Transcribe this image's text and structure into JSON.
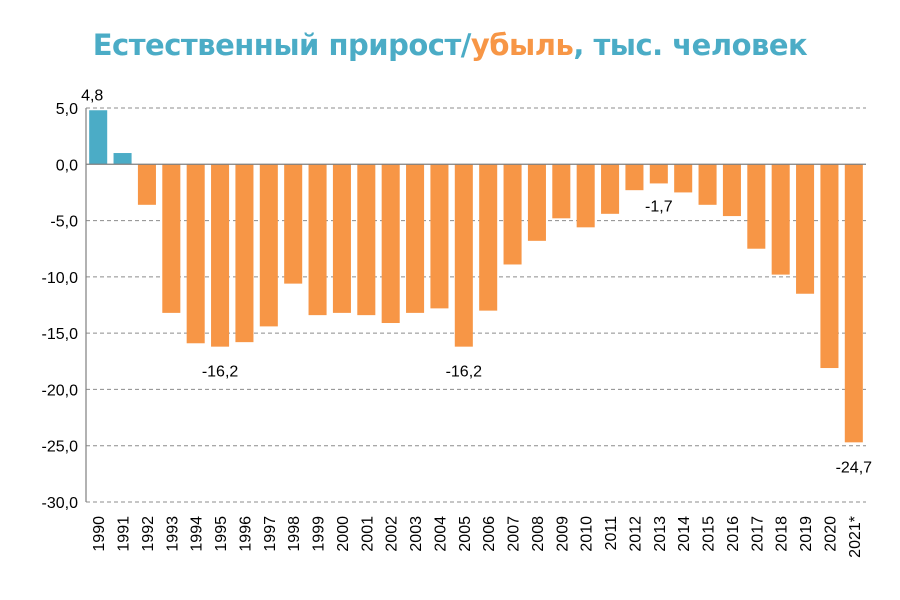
{
  "title": {
    "part1": "Естественный прирост/",
    "part2": "убыль",
    "part3": ", тыс. человек",
    "color_gain": "#4bacc6",
    "color_loss": "#f79646"
  },
  "chart_data": {
    "type": "bar",
    "categories": [
      "1990",
      "1991",
      "1992",
      "1993",
      "1994",
      "1995",
      "1996",
      "1997",
      "1998",
      "1999",
      "2000",
      "2001",
      "2002",
      "2003",
      "2004",
      "2005",
      "2006",
      "2007",
      "2008",
      "2009",
      "2010",
      "2011",
      "2012",
      "2013",
      "2014",
      "2015",
      "2016",
      "2017",
      "2018",
      "2019",
      "2020",
      "2021*"
    ],
    "values": [
      4.8,
      1.0,
      -3.6,
      -13.2,
      -15.9,
      -16.2,
      -15.8,
      -14.4,
      -10.6,
      -13.4,
      -13.2,
      -13.4,
      -14.1,
      -13.2,
      -12.8,
      -16.2,
      -13.0,
      -8.9,
      -6.8,
      -4.8,
      -5.6,
      -4.4,
      -2.3,
      -1.7,
      -2.5,
      -3.6,
      -4.6,
      -7.5,
      -9.8,
      -11.5,
      -18.1,
      -24.7
    ],
    "ylim": [
      -30,
      5
    ],
    "yticks": [
      "5,0",
      "0,0",
      "-5,0",
      "-10,0",
      "-15,0",
      "-20,0",
      "-25,0",
      "-30,0"
    ],
    "ytick_values": [
      5,
      0,
      -5,
      -10,
      -15,
      -20,
      -25,
      -30
    ],
    "grid": true,
    "data_labels": [
      {
        "category": "1990",
        "text": "4,8"
      },
      {
        "category": "1995",
        "text": "-16,2"
      },
      {
        "category": "2005",
        "text": "-16,2"
      },
      {
        "category": "2013",
        "text": "-1,7"
      },
      {
        "category": "2021*",
        "text": "-24,7"
      }
    ],
    "positive_color": "#4bacc6",
    "negative_color": "#f79646"
  }
}
